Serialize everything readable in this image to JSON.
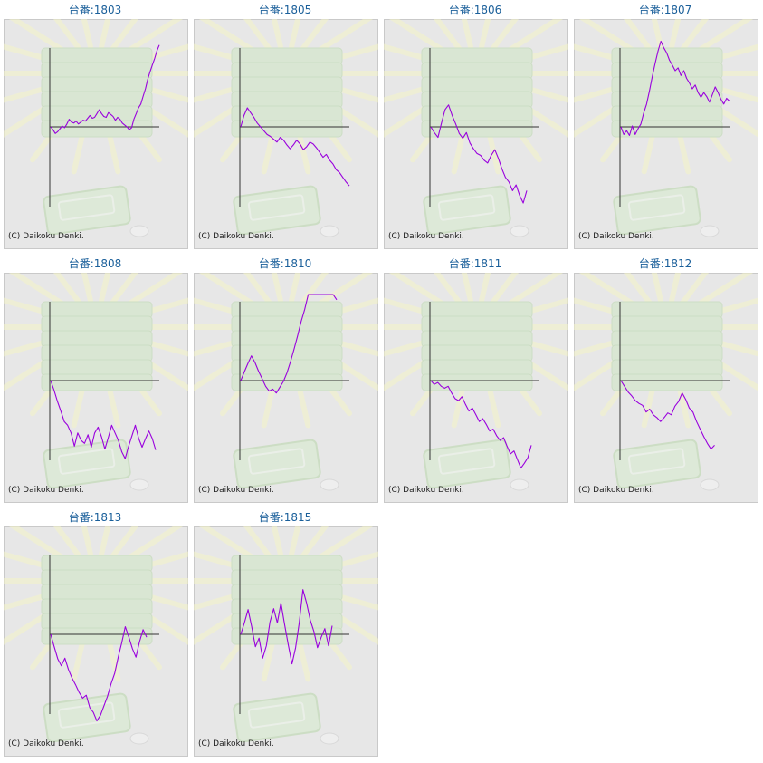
{
  "credit": "(C) Daikoku Denki.",
  "colors": {
    "line": "#9900dd",
    "axis": "#333333",
    "title": "#1a5f9a",
    "panel_bg": "#e7e7e7"
  },
  "chart_data": [
    {
      "type": "line",
      "title": "台番:1803",
      "values": [
        0,
        -0.3,
        -0.7,
        -0.5,
        -0.2,
        0.1,
        -0.1,
        0.3,
        0.8,
        0.5,
        0.4,
        0.6,
        0.3,
        0.5,
        0.7,
        0.6,
        0.9,
        1.2,
        0.9,
        1.0,
        1.4,
        1.8,
        1.4,
        1.1,
        1.0,
        1.5,
        1.3,
        1.1,
        0.7,
        1.0,
        0.8,
        0.4,
        0.2,
        0.0,
        -0.3,
        -0.1,
        0.8,
        1.4,
        2.0,
        2.4,
        3.2,
        4.0,
        5.0,
        5.8,
        6.5,
        7.2,
        8.0,
        8.6
      ]
    },
    {
      "type": "line",
      "title": "台番:1805",
      "values": [
        0,
        1.2,
        2.0,
        1.5,
        1.0,
        0.4,
        0.0,
        -0.4,
        -0.8,
        -1.0,
        -1.3,
        -1.6,
        -1.1,
        -1.4,
        -1.9,
        -2.3,
        -1.9,
        -1.4,
        -1.8,
        -2.4,
        -2.1,
        -1.6,
        -1.8,
        -2.2,
        -2.7,
        -3.2,
        -2.9,
        -3.5,
        -3.9,
        -4.5,
        -4.8,
        -5.3,
        -5.8,
        -6.2
      ]
    },
    {
      "type": "line",
      "title": "台番:1806",
      "values": [
        0,
        -0.6,
        -1.1,
        0.4,
        1.8,
        2.3,
        1.2,
        0.3,
        -0.7,
        -1.2,
        -0.6,
        -1.7,
        -2.3,
        -2.8,
        -3.0,
        -3.5,
        -3.8,
        -3.0,
        -2.4,
        -3.3,
        -4.4,
        -5.3,
        -5.8,
        -6.7,
        -6.1,
        -7.2,
        -8.0,
        -6.7
      ]
    },
    {
      "type": "line",
      "title": "台番:1807",
      "values": [
        0,
        -0.8,
        -0.4,
        -0.9,
        0.1,
        -0.8,
        -0.2,
        0.3,
        1.5,
        2.4,
        3.8,
        5.3,
        6.7,
        8.0,
        9.0,
        8.3,
        7.8,
        7.0,
        6.5,
        5.9,
        6.2,
        5.4,
        5.9,
        5.1,
        4.6,
        4.0,
        4.4,
        3.6,
        3.1,
        3.6,
        3.2,
        2.6,
        3.4,
        4.2,
        3.6,
        2.9,
        2.4,
        3.0,
        2.7
      ]
    },
    {
      "type": "line",
      "title": "台番:1808",
      "values": [
        0,
        -1.0,
        -2.2,
        -3.2,
        -4.3,
        -4.7,
        -5.5,
        -6.9,
        -5.5,
        -6.3,
        -6.6,
        -5.7,
        -7.0,
        -5.5,
        -4.9,
        -5.9,
        -7.2,
        -6.0,
        -4.7,
        -5.5,
        -6.3,
        -7.5,
        -8.2,
        -6.9,
        -5.8,
        -4.7,
        -6.1,
        -7.0,
        -6.1,
        -5.3,
        -6.1,
        -7.3
      ]
    },
    {
      "type": "line",
      "title": "台番:1810",
      "values": [
        0,
        0.9,
        1.8,
        2.6,
        1.9,
        1.0,
        0.2,
        -0.6,
        -1.1,
        -0.9,
        -1.3,
        -0.7,
        -0.1,
        0.8,
        2.0,
        3.3,
        4.7,
        6.2,
        7.5,
        9.1,
        10.4,
        11.6,
        12.8,
        12.3,
        11.5,
        10.4,
        9.5,
        8.5
      ]
    },
    {
      "type": "line",
      "title": "台番:1811",
      "values": [
        0,
        -0.4,
        -0.2,
        -0.6,
        -0.8,
        -0.6,
        -1.3,
        -1.9,
        -2.1,
        -1.7,
        -2.5,
        -3.2,
        -2.9,
        -3.6,
        -4.3,
        -4.0,
        -4.6,
        -5.3,
        -5.1,
        -5.8,
        -6.3,
        -6.0,
        -6.9,
        -7.7,
        -7.4,
        -8.3,
        -9.2,
        -8.7,
        -8.1,
        -6.8
      ]
    },
    {
      "type": "line",
      "title": "台番:1812",
      "values": [
        0,
        -0.6,
        -1.2,
        -1.6,
        -2.1,
        -2.4,
        -2.6,
        -3.3,
        -3.0,
        -3.6,
        -3.9,
        -4.3,
        -3.9,
        -3.4,
        -3.6,
        -2.7,
        -2.2,
        -1.3,
        -2.0,
        -2.9,
        -3.3,
        -4.3,
        -5.1,
        -5.9,
        -6.6,
        -7.2,
        -6.8
      ]
    },
    {
      "type": "line",
      "title": "台番:1813",
      "values": [
        0,
        -1.3,
        -2.6,
        -3.3,
        -2.5,
        -3.7,
        -4.6,
        -5.3,
        -6.1,
        -6.7,
        -6.4,
        -7.7,
        -8.2,
        -9.1,
        -8.5,
        -7.5,
        -6.5,
        -5.2,
        -4.1,
        -2.4,
        -0.9,
        0.8,
        -0.3,
        -1.5,
        -2.4,
        -0.8,
        0.5,
        -0.3
      ]
    },
    {
      "type": "line",
      "title": "台番:1815",
      "values": [
        0,
        1.2,
        2.6,
        0.8,
        -1.3,
        -0.4,
        -2.5,
        -1.2,
        1.3,
        2.7,
        1.2,
        3.3,
        1.0,
        -1.1,
        -3.1,
        -1.4,
        1.2,
        4.7,
        3.3,
        1.5,
        0.3,
        -1.4,
        -0.3,
        0.6,
        -1.2,
        0.9
      ]
    }
  ]
}
